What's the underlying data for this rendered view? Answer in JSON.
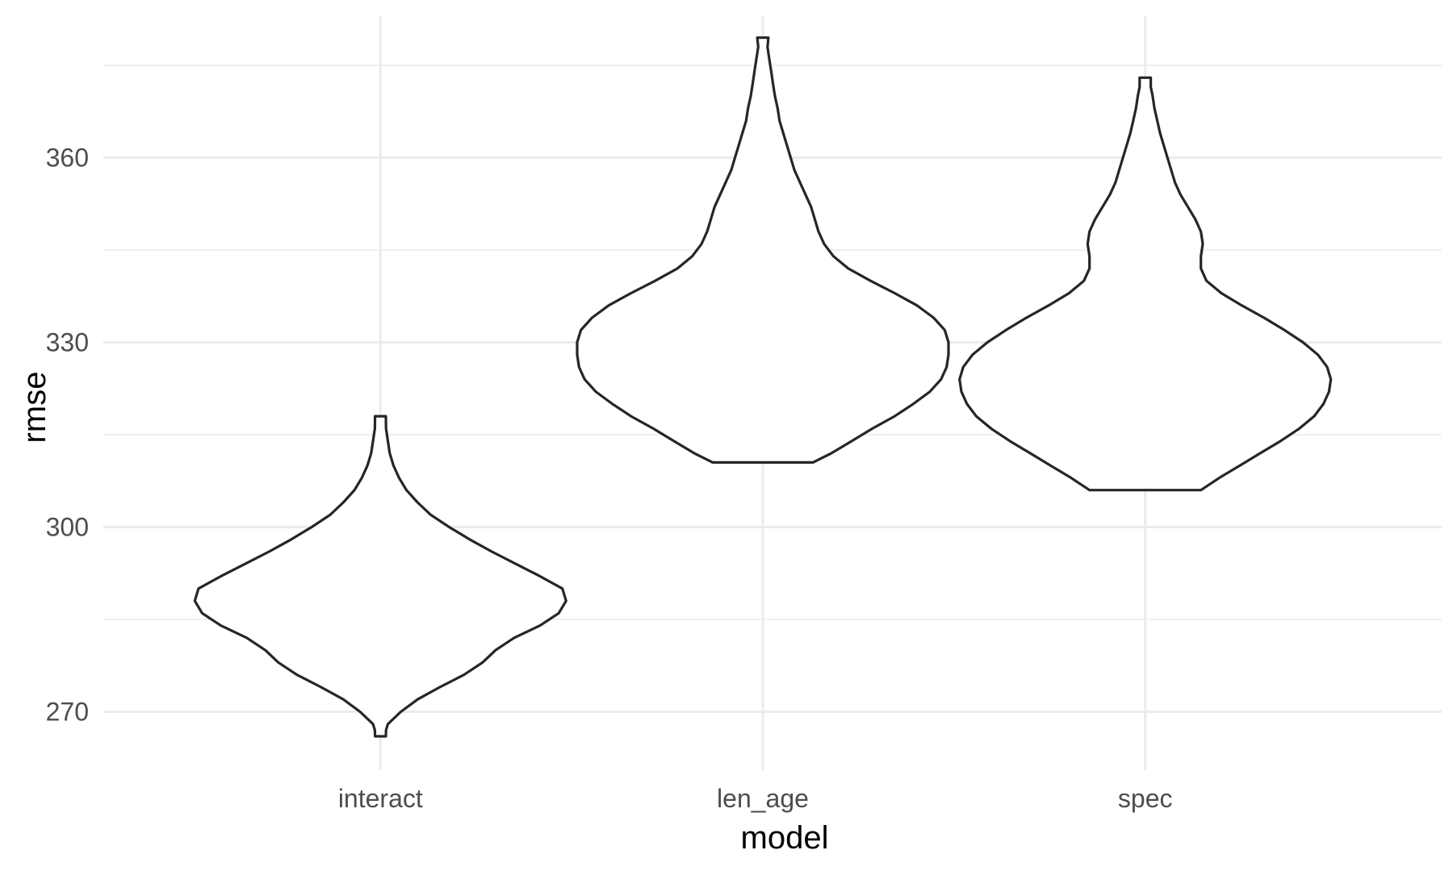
{
  "chart_data": {
    "type": "violin",
    "title": "",
    "xlabel": "model",
    "ylabel": "rmse",
    "categories": [
      "interact",
      "len_age",
      "spec"
    ],
    "yticks": [
      270,
      300,
      330,
      360
    ],
    "ylim": [
      260.5,
      383
    ],
    "grid": true,
    "colors": {
      "outline": "#262626",
      "fill": "#ffffff",
      "grid": "#ebebeb"
    },
    "violins": [
      {
        "category": "interact",
        "min": 266,
        "max": 318,
        "density": [
          [
            266,
            0.029
          ],
          [
            267,
            0.03
          ],
          [
            268,
            0.04
          ],
          [
            270,
            0.11
          ],
          [
            272,
            0.2
          ],
          [
            274,
            0.32
          ],
          [
            276,
            0.45
          ],
          [
            278,
            0.55
          ],
          [
            280,
            0.62
          ],
          [
            282,
            0.72
          ],
          [
            284,
            0.86
          ],
          [
            286,
            0.96
          ],
          [
            288,
            1.0
          ],
          [
            290,
            0.98
          ],
          [
            292,
            0.86
          ],
          [
            294,
            0.73
          ],
          [
            296,
            0.6
          ],
          [
            298,
            0.48
          ],
          [
            300,
            0.37
          ],
          [
            302,
            0.27
          ],
          [
            304,
            0.2
          ],
          [
            306,
            0.14
          ],
          [
            308,
            0.1
          ],
          [
            310,
            0.07
          ],
          [
            312,
            0.05
          ],
          [
            314,
            0.04
          ],
          [
            316,
            0.03
          ],
          [
            318,
            0.029
          ]
        ]
      },
      {
        "category": "len_age",
        "min": 310.5,
        "max": 379.5,
        "density": [
          [
            310.5,
            0.27
          ],
          [
            312,
            0.37
          ],
          [
            314,
            0.48
          ],
          [
            316,
            0.59
          ],
          [
            318,
            0.71
          ],
          [
            320,
            0.81
          ],
          [
            322,
            0.9
          ],
          [
            324,
            0.96
          ],
          [
            326,
            0.99
          ],
          [
            328,
            1.0
          ],
          [
            330,
            1.0
          ],
          [
            332,
            0.98
          ],
          [
            334,
            0.92
          ],
          [
            336,
            0.83
          ],
          [
            338,
            0.71
          ],
          [
            340,
            0.58
          ],
          [
            342,
            0.46
          ],
          [
            344,
            0.38
          ],
          [
            346,
            0.33
          ],
          [
            348,
            0.3
          ],
          [
            350,
            0.28
          ],
          [
            352,
            0.26
          ],
          [
            354,
            0.23
          ],
          [
            356,
            0.2
          ],
          [
            358,
            0.17
          ],
          [
            360,
            0.15
          ],
          [
            362,
            0.13
          ],
          [
            364,
            0.11
          ],
          [
            366,
            0.09
          ],
          [
            368,
            0.08
          ],
          [
            370,
            0.065
          ],
          [
            372,
            0.055
          ],
          [
            374,
            0.045
          ],
          [
            376,
            0.035
          ],
          [
            378,
            0.025
          ],
          [
            379.5,
            0.03
          ]
        ]
      },
      {
        "category": "spec",
        "min": 306,
        "max": 373,
        "density": [
          [
            306,
            0.3
          ],
          [
            308,
            0.4
          ],
          [
            310,
            0.51
          ],
          [
            312,
            0.62
          ],
          [
            314,
            0.73
          ],
          [
            316,
            0.83
          ],
          [
            318,
            0.91
          ],
          [
            320,
            0.96
          ],
          [
            322,
            0.99
          ],
          [
            324,
            1.0
          ],
          [
            326,
            0.98
          ],
          [
            328,
            0.93
          ],
          [
            330,
            0.85
          ],
          [
            332,
            0.75
          ],
          [
            334,
            0.64
          ],
          [
            336,
            0.52
          ],
          [
            338,
            0.41
          ],
          [
            340,
            0.33
          ],
          [
            342,
            0.3
          ],
          [
            344,
            0.3
          ],
          [
            346,
            0.31
          ],
          [
            348,
            0.3
          ],
          [
            350,
            0.27
          ],
          [
            352,
            0.23
          ],
          [
            354,
            0.19
          ],
          [
            356,
            0.16
          ],
          [
            358,
            0.14
          ],
          [
            360,
            0.12
          ],
          [
            362,
            0.1
          ],
          [
            364,
            0.08
          ],
          [
            366,
            0.065
          ],
          [
            368,
            0.05
          ],
          [
            370,
            0.04
          ],
          [
            371.5,
            0.03
          ],
          [
            373,
            0.03
          ]
        ]
      }
    ]
  }
}
